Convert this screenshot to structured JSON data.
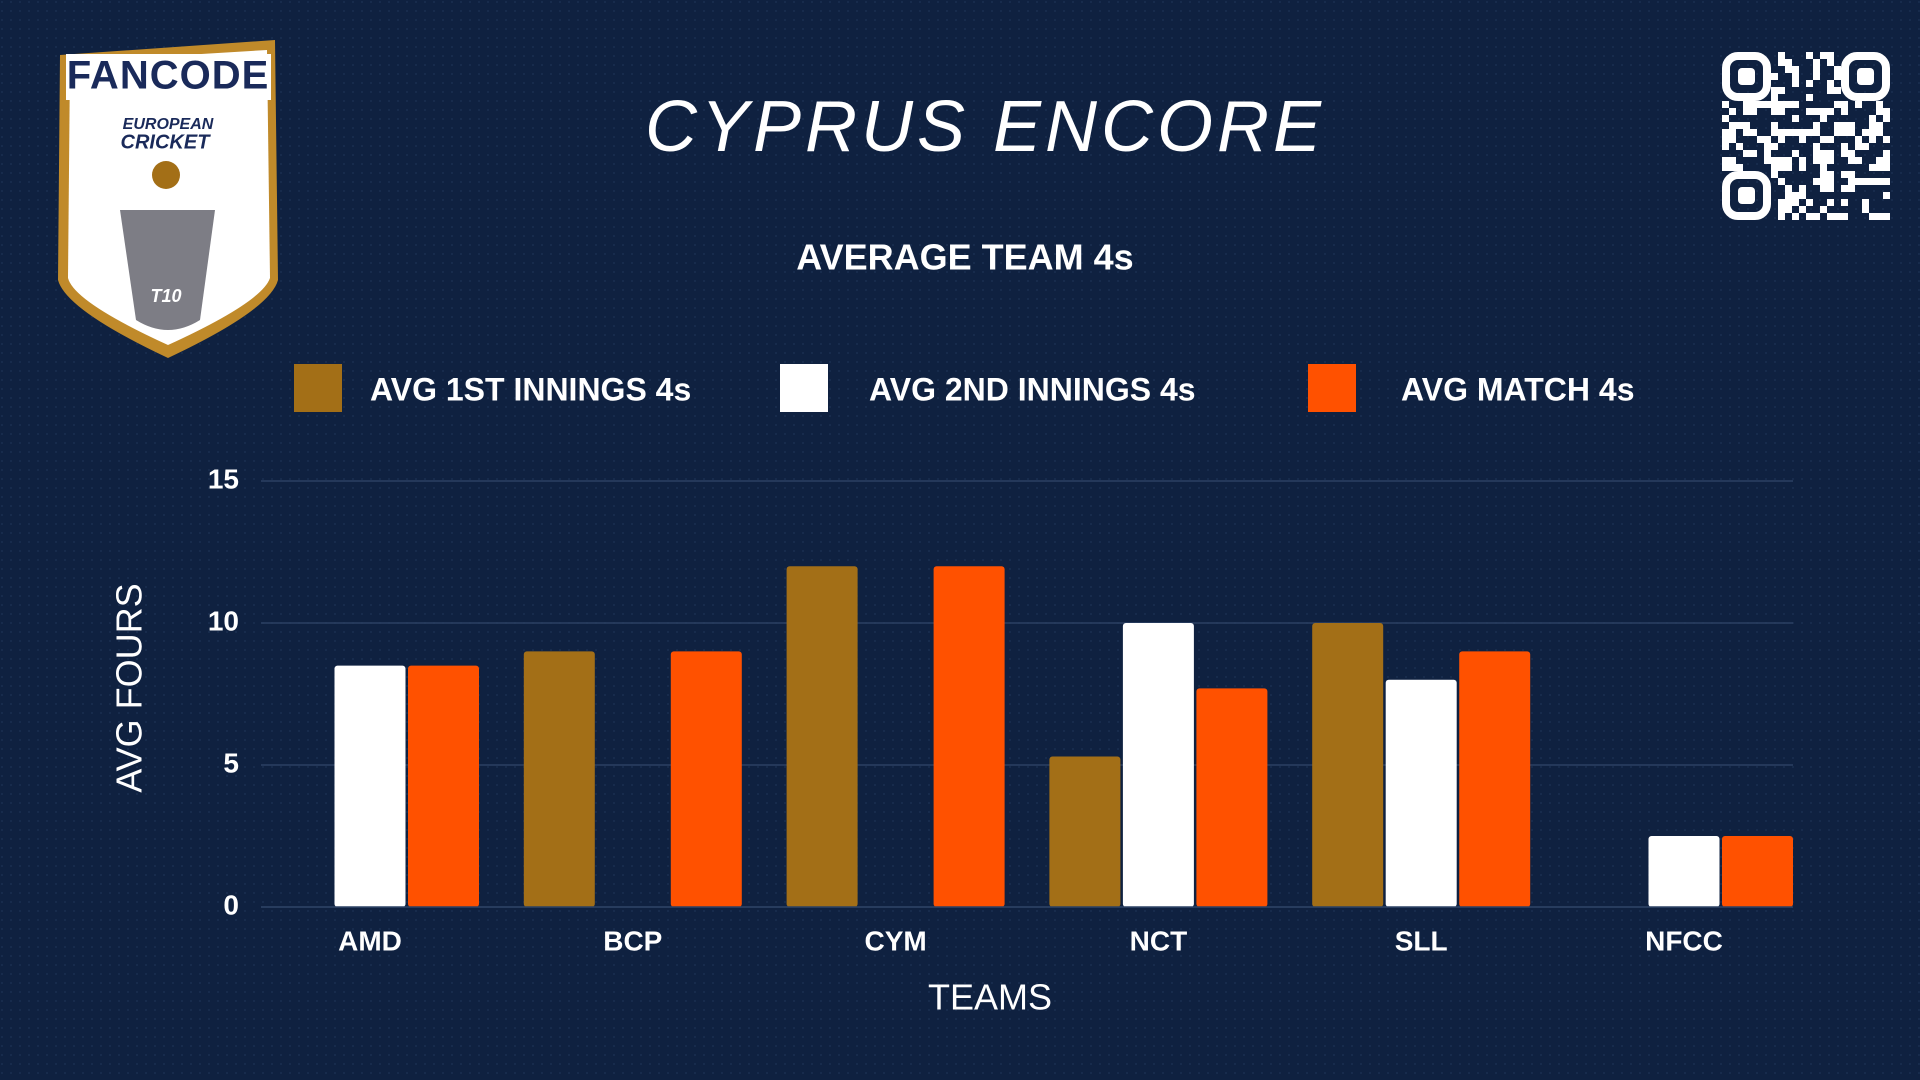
{
  "logo": {
    "brand": "FANCODE",
    "line1": "EUROPEAN",
    "line2": "CRICKET",
    "badge": "T10"
  },
  "chart_data": {
    "type": "bar",
    "title": "CYPRUS ENCORE",
    "subtitle": "AVERAGE TEAM 4s",
    "x_label": "TEAMS",
    "y_label": "AVG FOURS",
    "categories": [
      "AMD",
      "BCP",
      "CYM",
      "NCT",
      "SLL",
      "NFCC"
    ],
    "series": [
      {
        "name": "AVG 1ST INNINGS 4s",
        "color": "#a36f17",
        "values": [
          null,
          9,
          12,
          5.3,
          10,
          null
        ]
      },
      {
        "name": "AVG 2ND INNINGS 4s",
        "color": "#ffffff",
        "values": [
          8.5,
          null,
          null,
          10,
          8,
          2.5
        ]
      },
      {
        "name": "AVG MATCH 4s",
        "color": "#ff5100",
        "values": [
          8.5,
          9,
          12,
          7.7,
          9,
          2.5
        ]
      }
    ],
    "ylim": [
      0,
      15
    ],
    "yticks": [
      0,
      5,
      10,
      15
    ],
    "grid": true
  }
}
